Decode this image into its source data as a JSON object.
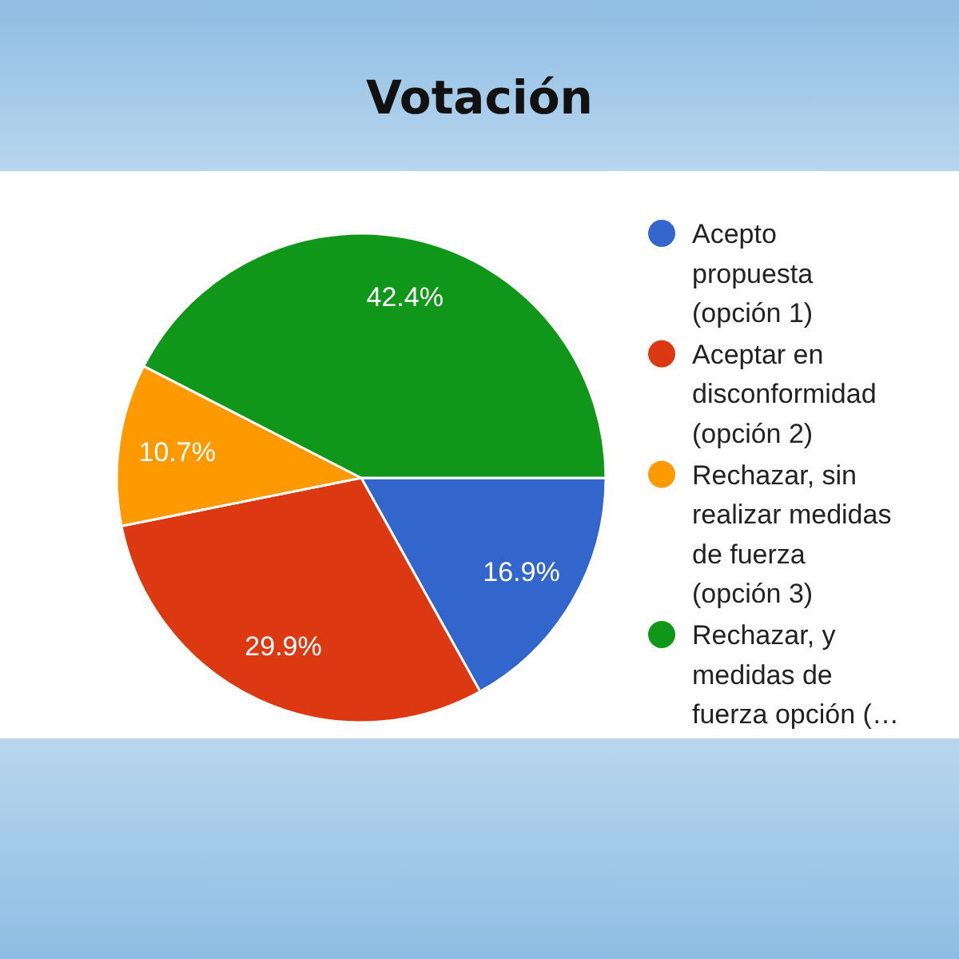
{
  "chart_data": {
    "type": "pie",
    "title": "Votación",
    "categories": [
      "Acepto propuesta (opción 1)",
      "Aceptar en disconformidad (opción 2)",
      "Rechazar, sin realizar medidas de fuerza (opción 3)",
      "Rechazar, y medidas de fuerza opción (…"
    ],
    "values": [
      16.9,
      29.9,
      10.7,
      42.4
    ],
    "colors": [
      "#3366cc",
      "#dc3912",
      "#ff9900",
      "#109618"
    ],
    "value_labels": [
      "16.9%",
      "29.9%",
      "10.7%",
      "42.4%"
    ],
    "legend": "right"
  }
}
